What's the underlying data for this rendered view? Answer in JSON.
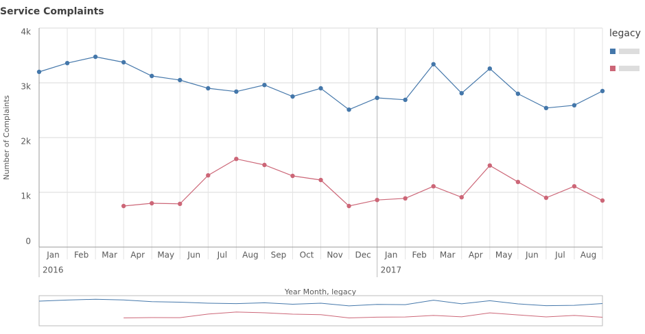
{
  "chart_data": {
    "type": "line",
    "title": "Service Complaints",
    "y_label": "Number of Complaints",
    "x_label": "Year Month, legacy",
    "legend_title": "legacy",
    "legend_position": "right",
    "grid": true,
    "categories": [
      "Jan",
      "Feb",
      "Mar",
      "Apr",
      "May",
      "Jun",
      "Jul",
      "Aug",
      "Sep",
      "Oct",
      "Nov",
      "Dec",
      "Jan",
      "Feb",
      "Mar",
      "Apr",
      "May",
      "Jun",
      "Jul",
      "Aug",
      null
    ],
    "x_groups": [
      {
        "label": "2016",
        "start": 0
      },
      {
        "label": "2017",
        "start": 12
      }
    ],
    "series": [
      {
        "color": "#4477aa",
        "values": [
          3200,
          3360,
          3475,
          3375,
          3125,
          3050,
          2900,
          2840,
          2960,
          2750,
          2900,
          2510,
          2725,
          2690,
          3340,
          2810,
          3260,
          2800,
          2540,
          2590,
          2850
        ]
      },
      {
        "color": "#cc6677",
        "values": [
          null,
          null,
          null,
          750,
          800,
          790,
          1310,
          1610,
          1500,
          1300,
          1225,
          750,
          860,
          890,
          1110,
          910,
          1490,
          1190,
          900,
          1110,
          850
        ]
      }
    ],
    "ylim": [
      0,
      4000
    ],
    "yticks": [
      0,
      {
        "value": 1000,
        "label": "1k"
      },
      {
        "value": 2000,
        "label": "2k"
      },
      {
        "value": 3000,
        "label": "3k"
      },
      {
        "value": 4000,
        "label": "4k"
      }
    ]
  }
}
